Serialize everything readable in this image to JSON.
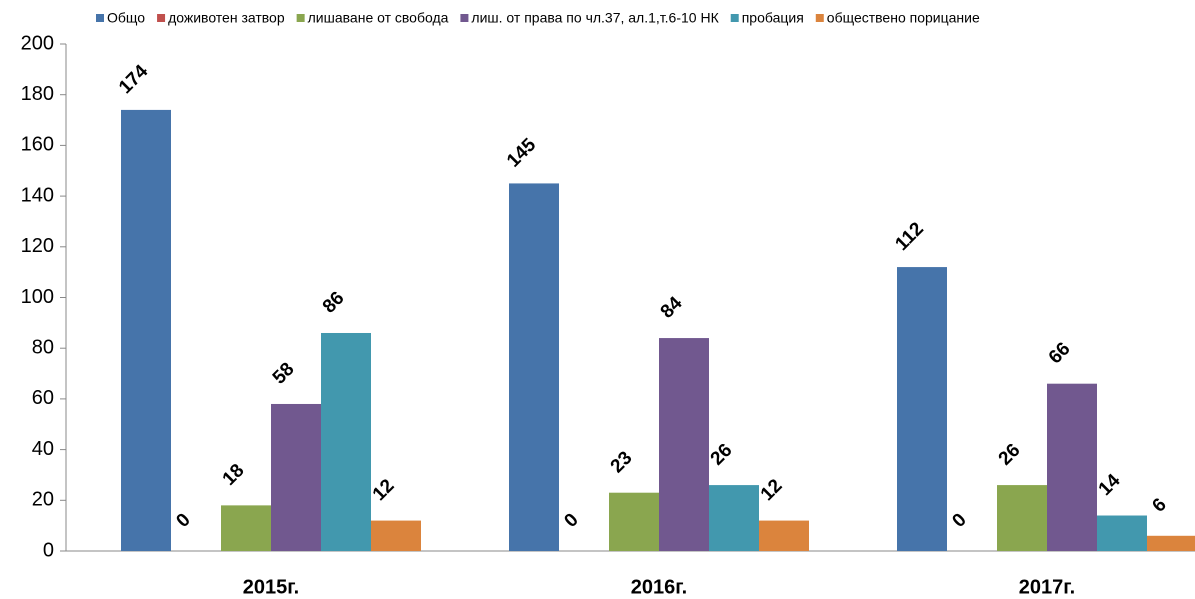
{
  "chart_data": {
    "type": "bar",
    "categories": [
      "2015г.",
      "2016г.",
      "2017г."
    ],
    "series": [
      {
        "name": "Общо",
        "color": "#4674aa",
        "values": [
          174,
          145,
          112
        ]
      },
      {
        "name": "доживотен затвор",
        "color": "#c0504d",
        "values": [
          0,
          0,
          0
        ]
      },
      {
        "name": "лишаване от свобода",
        "color": "#8aa64f",
        "values": [
          18,
          23,
          26
        ]
      },
      {
        "name": "лиш. от права по чл.37, ал.1,т.6-10 НК",
        "color": "#71588f",
        "values": [
          58,
          84,
          66
        ]
      },
      {
        "name": "пробация",
        "color": "#4298ae",
        "values": [
          86,
          26,
          14
        ]
      },
      {
        "name": "обществено порицание",
        "color": "#db843d",
        "values": [
          12,
          12,
          6
        ]
      }
    ],
    "ylim": [
      0,
      200
    ],
    "yticks": [
      0,
      20,
      40,
      60,
      80,
      100,
      120,
      140,
      160,
      180,
      200
    ],
    "legend": "top"
  }
}
